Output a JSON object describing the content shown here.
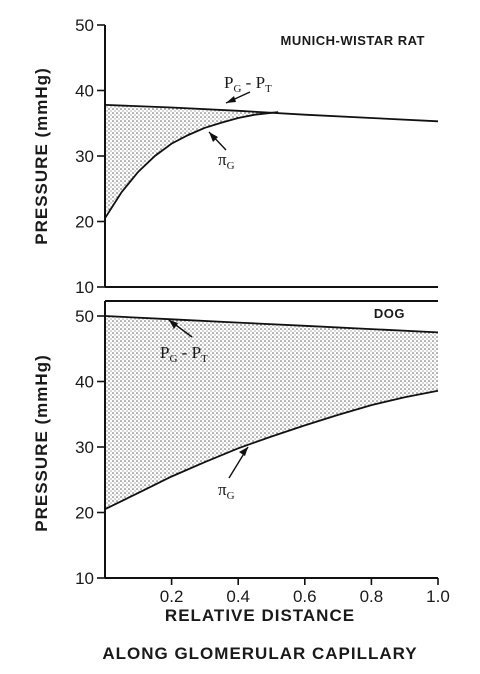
{
  "chart_data": [
    {
      "type": "area",
      "title": "MUNICH-WISTAR RAT",
      "ylabel": "PRESSURE (mmHg)",
      "xlim": [
        0,
        1.0
      ],
      "ylim": [
        10,
        50
      ],
      "yticks": [
        "10",
        "20",
        "30",
        "40",
        "50"
      ],
      "series": [
        {
          "name": "PG - PT",
          "x": [
            0,
            0.2,
            0.4,
            0.6,
            0.8,
            1.0
          ],
          "values": [
            37.8,
            37.4,
            36.9,
            36.3,
            35.8,
            35.3
          ]
        },
        {
          "name": "πG",
          "x": [
            0,
            0.05,
            0.1,
            0.15,
            0.2,
            0.25,
            0.3,
            0.35,
            0.4,
            0.45,
            0.5,
            0.52
          ],
          "values": [
            20.5,
            24.5,
            27.6,
            30.0,
            31.9,
            33.2,
            34.3,
            35.1,
            35.8,
            36.3,
            36.6,
            36.7
          ]
        }
      ],
      "annotations": {
        "pgpt": {
          "main": "P",
          "s1": "G",
          "mid": " - P",
          "s2": "T"
        },
        "pi": {
          "main": "π",
          "sub": "G"
        }
      }
    },
    {
      "type": "area",
      "title": "DOG",
      "ylabel": "PRESSURE (mmHg)",
      "xlabel": "RELATIVE DISTANCE",
      "xlabel2": "ALONG GLOMERULAR CAPILLARY",
      "xlim": [
        0,
        1.0
      ],
      "ylim": [
        10,
        50
      ],
      "xticks": [
        "0.2",
        "0.4",
        "0.6",
        "0.8",
        "1.0"
      ],
      "yticks": [
        "10",
        "20",
        "30",
        "40",
        "50"
      ],
      "series": [
        {
          "name": "PG - PT",
          "x": [
            0,
            0.2,
            0.4,
            0.6,
            0.8,
            1.0
          ],
          "values": [
            50.0,
            49.5,
            49.0,
            48.5,
            48.0,
            47.5
          ]
        },
        {
          "name": "πG",
          "x": [
            0,
            0.1,
            0.2,
            0.3,
            0.4,
            0.5,
            0.6,
            0.7,
            0.8,
            0.9,
            1.0
          ],
          "values": [
            20.5,
            23.0,
            25.5,
            27.7,
            29.8,
            31.6,
            33.3,
            34.9,
            36.4,
            37.6,
            38.6
          ]
        }
      ],
      "annotations": {
        "pgpt": {
          "main": "P",
          "s1": "G",
          "mid": " - P",
          "s2": "T"
        },
        "pi": {
          "main": "π",
          "sub": "G"
        }
      }
    }
  ]
}
